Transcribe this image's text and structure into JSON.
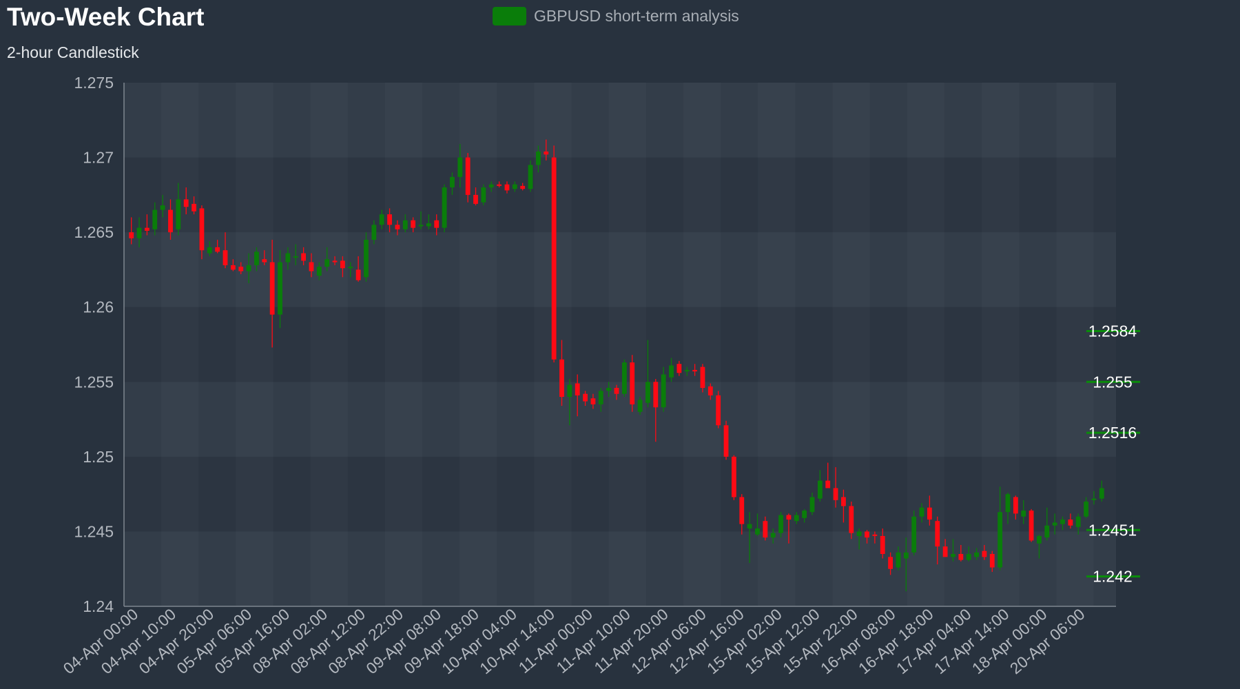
{
  "chart_data": {
    "type": "candlestick",
    "title": "Two-Week Chart",
    "subtitle": "2-hour Candlestick",
    "legend": {
      "label": "GBPUSD short-term analysis",
      "position": "top-center"
    },
    "colors": {
      "background": "#28323e",
      "plot_band_light": "#3a4350",
      "plot_band_dark": "#2c3541",
      "up": "#0a7d0a",
      "down": "#ff0a14",
      "axis": "#7f8790",
      "text": "#b3b8bf",
      "level_line": "#0a8c0a"
    },
    "ylim": [
      1.24,
      1.275
    ],
    "yticks": [
      "1.275",
      "1.27",
      "1.265",
      "1.26",
      "1.255",
      "1.25",
      "1.245",
      "1.24"
    ],
    "xticks": [
      "04-Apr 00:00",
      "04-Apr 10:00",
      "04-Apr 20:00",
      "05-Apr 06:00",
      "05-Apr 16:00",
      "08-Apr 02:00",
      "08-Apr 12:00",
      "08-Apr 22:00",
      "09-Apr 08:00",
      "09-Apr 18:00",
      "10-Apr 04:00",
      "10-Apr 14:00",
      "11-Apr 00:00",
      "11-Apr 10:00",
      "11-Apr 20:00",
      "12-Apr 06:00",
      "12-Apr 16:00",
      "15-Apr 02:00",
      "15-Apr 12:00",
      "15-Apr 22:00",
      "16-Apr 08:00",
      "16-Apr 18:00",
      "17-Apr 04:00",
      "17-Apr 14:00",
      "18-Apr 00:00",
      "20-Apr 06:00"
    ],
    "levels": [
      {
        "value": 1.2584,
        "label": "1.2584"
      },
      {
        "value": 1.255,
        "label": "1.255"
      },
      {
        "value": 1.2516,
        "label": "1.2516"
      },
      {
        "value": 1.2451,
        "label": "1.2451"
      },
      {
        "value": 1.242,
        "label": "1.242"
      }
    ],
    "candles": [
      {
        "o": 1.265,
        "h": 1.266,
        "l": 1.2642,
        "c": 1.2646
      },
      {
        "o": 1.2646,
        "h": 1.266,
        "l": 1.264,
        "c": 1.2653
      },
      {
        "o": 1.2653,
        "h": 1.2662,
        "l": 1.2648,
        "c": 1.2651
      },
      {
        "o": 1.2652,
        "h": 1.267,
        "l": 1.2648,
        "c": 1.2665
      },
      {
        "o": 1.2665,
        "h": 1.2675,
        "l": 1.266,
        "c": 1.2668
      },
      {
        "o": 1.2665,
        "h": 1.2672,
        "l": 1.2645,
        "c": 1.265
      },
      {
        "o": 1.2652,
        "h": 1.2683,
        "l": 1.2648,
        "c": 1.2672
      },
      {
        "o": 1.2672,
        "h": 1.268,
        "l": 1.2662,
        "c": 1.2667
      },
      {
        "o": 1.2669,
        "h": 1.2674,
        "l": 1.2662,
        "c": 1.2664
      },
      {
        "o": 1.2666,
        "h": 1.2668,
        "l": 1.2632,
        "c": 1.2638
      },
      {
        "o": 1.2636,
        "h": 1.2644,
        "l": 1.2634,
        "c": 1.264
      },
      {
        "o": 1.264,
        "h": 1.2645,
        "l": 1.2636,
        "c": 1.2637
      },
      {
        "o": 1.2638,
        "h": 1.265,
        "l": 1.2626,
        "c": 1.2628
      },
      {
        "o": 1.2628,
        "h": 1.2632,
        "l": 1.2624,
        "c": 1.2625
      },
      {
        "o": 1.2627,
        "h": 1.263,
        "l": 1.2622,
        "c": 1.2624
      },
      {
        "o": 1.2624,
        "h": 1.2636,
        "l": 1.2616,
        "c": 1.2628
      },
      {
        "o": 1.2628,
        "h": 1.264,
        "l": 1.2624,
        "c": 1.2637
      },
      {
        "o": 1.2632,
        "h": 1.2638,
        "l": 1.2628,
        "c": 1.263
      },
      {
        "o": 1.263,
        "h": 1.2645,
        "l": 1.2573,
        "c": 1.2595
      },
      {
        "o": 1.2595,
        "h": 1.2638,
        "l": 1.2586,
        "c": 1.263
      },
      {
        "o": 1.263,
        "h": 1.264,
        "l": 1.2625,
        "c": 1.2636
      },
      {
        "o": 1.2633,
        "h": 1.2642,
        "l": 1.2628,
        "c": 1.2634
      },
      {
        "o": 1.2636,
        "h": 1.264,
        "l": 1.2628,
        "c": 1.2631
      },
      {
        "o": 1.263,
        "h": 1.2636,
        "l": 1.262,
        "c": 1.2624
      },
      {
        "o": 1.2621,
        "h": 1.263,
        "l": 1.2618,
        "c": 1.2627
      },
      {
        "o": 1.2627,
        "h": 1.264,
        "l": 1.2624,
        "c": 1.2632
      },
      {
        "o": 1.2631,
        "h": 1.2634,
        "l": 1.2628,
        "c": 1.263
      },
      {
        "o": 1.2631,
        "h": 1.2634,
        "l": 1.262,
        "c": 1.2626
      },
      {
        "o": 1.2626,
        "h": 1.263,
        "l": 1.262,
        "c": 1.2627
      },
      {
        "o": 1.2625,
        "h": 1.2634,
        "l": 1.2617,
        "c": 1.2618
      },
      {
        "o": 1.262,
        "h": 1.265,
        "l": 1.2617,
        "c": 1.2645
      },
      {
        "o": 1.2645,
        "h": 1.2658,
        "l": 1.2642,
        "c": 1.2655
      },
      {
        "o": 1.2655,
        "h": 1.2665,
        "l": 1.2652,
        "c": 1.2662
      },
      {
        "o": 1.2662,
        "h": 1.2666,
        "l": 1.265,
        "c": 1.2655
      },
      {
        "o": 1.2655,
        "h": 1.2658,
        "l": 1.2648,
        "c": 1.2652
      },
      {
        "o": 1.2652,
        "h": 1.2662,
        "l": 1.265,
        "c": 1.2658
      },
      {
        "o": 1.2658,
        "h": 1.266,
        "l": 1.265,
        "c": 1.2653
      },
      {
        "o": 1.2654,
        "h": 1.2664,
        "l": 1.2652,
        "c": 1.2655
      },
      {
        "o": 1.2654,
        "h": 1.2662,
        "l": 1.2652,
        "c": 1.2656
      },
      {
        "o": 1.2658,
        "h": 1.2662,
        "l": 1.2648,
        "c": 1.2653
      },
      {
        "o": 1.2653,
        "h": 1.2682,
        "l": 1.265,
        "c": 1.268
      },
      {
        "o": 1.268,
        "h": 1.269,
        "l": 1.2675,
        "c": 1.2687
      },
      {
        "o": 1.2687,
        "h": 1.2709,
        "l": 1.268,
        "c": 1.27
      },
      {
        "o": 1.27,
        "h": 1.2703,
        "l": 1.267,
        "c": 1.2675
      },
      {
        "o": 1.2675,
        "h": 1.268,
        "l": 1.2668,
        "c": 1.2669
      },
      {
        "o": 1.267,
        "h": 1.2682,
        "l": 1.2668,
        "c": 1.268
      },
      {
        "o": 1.268,
        "h": 1.2684,
        "l": 1.2677,
        "c": 1.2682
      },
      {
        "o": 1.2682,
        "h": 1.2684,
        "l": 1.268,
        "c": 1.2681
      },
      {
        "o": 1.2682,
        "h": 1.2684,
        "l": 1.2676,
        "c": 1.2678
      },
      {
        "o": 1.2679,
        "h": 1.2684,
        "l": 1.2677,
        "c": 1.2682
      },
      {
        "o": 1.2681,
        "h": 1.2683,
        "l": 1.2678,
        "c": 1.2679
      },
      {
        "o": 1.2679,
        "h": 1.2698,
        "l": 1.2677,
        "c": 1.2695
      },
      {
        "o": 1.2695,
        "h": 1.2708,
        "l": 1.269,
        "c": 1.2704
      },
      {
        "o": 1.2704,
        "h": 1.2712,
        "l": 1.2698,
        "c": 1.2702
      },
      {
        "o": 1.27,
        "h": 1.2708,
        "l": 1.2563,
        "c": 1.2565
      },
      {
        "o": 1.2565,
        "h": 1.2578,
        "l": 1.2534,
        "c": 1.254
      },
      {
        "o": 1.254,
        "h": 1.2552,
        "l": 1.2521,
        "c": 1.2548
      },
      {
        "o": 1.2549,
        "h": 1.2555,
        "l": 1.2527,
        "c": 1.2541
      },
      {
        "o": 1.2542,
        "h": 1.2544,
        "l": 1.2534,
        "c": 1.2537
      },
      {
        "o": 1.2539,
        "h": 1.2542,
        "l": 1.2532,
        "c": 1.2535
      },
      {
        "o": 1.2535,
        "h": 1.2546,
        "l": 1.253,
        "c": 1.2544
      },
      {
        "o": 1.2544,
        "h": 1.255,
        "l": 1.254,
        "c": 1.2546
      },
      {
        "o": 1.2546,
        "h": 1.2548,
        "l": 1.2538,
        "c": 1.2542
      },
      {
        "o": 1.2542,
        "h": 1.2565,
        "l": 1.254,
        "c": 1.2563
      },
      {
        "o": 1.2563,
        "h": 1.2568,
        "l": 1.253,
        "c": 1.2535
      },
      {
        "o": 1.253,
        "h": 1.254,
        "l": 1.2528,
        "c": 1.2538
      },
      {
        "o": 1.2536,
        "h": 1.2578,
        "l": 1.2533,
        "c": 1.255
      },
      {
        "o": 1.255,
        "h": 1.2552,
        "l": 1.251,
        "c": 1.2533
      },
      {
        "o": 1.2533,
        "h": 1.256,
        "l": 1.253,
        "c": 1.2555
      },
      {
        "o": 1.2553,
        "h": 1.2566,
        "l": 1.255,
        "c": 1.2561
      },
      {
        "o": 1.2562,
        "h": 1.2564,
        "l": 1.2554,
        "c": 1.2556
      },
      {
        "o": 1.2557,
        "h": 1.256,
        "l": 1.2554,
        "c": 1.2558
      },
      {
        "o": 1.2558,
        "h": 1.2562,
        "l": 1.2554,
        "c": 1.2557
      },
      {
        "o": 1.256,
        "h": 1.2562,
        "l": 1.2543,
        "c": 1.2546
      },
      {
        "o": 1.2547,
        "h": 1.2549,
        "l": 1.2538,
        "c": 1.2541
      },
      {
        "o": 1.2541,
        "h": 1.2544,
        "l": 1.2519,
        "c": 1.2521
      },
      {
        "o": 1.2521,
        "h": 1.2524,
        "l": 1.2498,
        "c": 1.25
      },
      {
        "o": 1.25,
        "h": 1.2501,
        "l": 1.2471,
        "c": 1.2473
      },
      {
        "o": 1.2473,
        "h": 1.2475,
        "l": 1.2448,
        "c": 1.2455
      },
      {
        "o": 1.2452,
        "h": 1.2463,
        "l": 1.2429,
        "c": 1.2455
      },
      {
        "o": 1.2448,
        "h": 1.2462,
        "l": 1.2447,
        "c": 1.2452
      },
      {
        "o": 1.2457,
        "h": 1.246,
        "l": 1.2444,
        "c": 1.2446
      },
      {
        "o": 1.2446,
        "h": 1.2452,
        "l": 1.2442,
        "c": 1.2449
      },
      {
        "o": 1.2449,
        "h": 1.2463,
        "l": 1.2446,
        "c": 1.2461
      },
      {
        "o": 1.2461,
        "h": 1.2462,
        "l": 1.2442,
        "c": 1.2458
      },
      {
        "o": 1.2457,
        "h": 1.2463,
        "l": 1.2455,
        "c": 1.2461
      },
      {
        "o": 1.2459,
        "h": 1.2465,
        "l": 1.2456,
        "c": 1.2464
      },
      {
        "o": 1.2463,
        "h": 1.2476,
        "l": 1.2461,
        "c": 1.2473
      },
      {
        "o": 1.2472,
        "h": 1.2491,
        "l": 1.247,
        "c": 1.2484
      },
      {
        "o": 1.2484,
        "h": 1.2496,
        "l": 1.2481,
        "c": 1.2479
      },
      {
        "o": 1.2479,
        "h": 1.2493,
        "l": 1.2466,
        "c": 1.2471
      },
      {
        "o": 1.2473,
        "h": 1.2478,
        "l": 1.2456,
        "c": 1.2467
      },
      {
        "o": 1.2467,
        "h": 1.247,
        "l": 1.2445,
        "c": 1.2449
      },
      {
        "o": 1.2447,
        "h": 1.2452,
        "l": 1.2438,
        "c": 1.245
      },
      {
        "o": 1.245,
        "h": 1.2451,
        "l": 1.2442,
        "c": 1.2446
      },
      {
        "o": 1.2448,
        "h": 1.245,
        "l": 1.2442,
        "c": 1.2447
      },
      {
        "o": 1.2447,
        "h": 1.2452,
        "l": 1.2432,
        "c": 1.2435
      },
      {
        "o": 1.2433,
        "h": 1.2436,
        "l": 1.2421,
        "c": 1.2425
      },
      {
        "o": 1.2426,
        "h": 1.244,
        "l": 1.2424,
        "c": 1.2436
      },
      {
        "o": 1.2432,
        "h": 1.2446,
        "l": 1.241,
        "c": 1.2436
      },
      {
        "o": 1.2436,
        "h": 1.2464,
        "l": 1.2434,
        "c": 1.246
      },
      {
        "o": 1.246,
        "h": 1.2469,
        "l": 1.2456,
        "c": 1.2466
      },
      {
        "o": 1.2466,
        "h": 1.2474,
        "l": 1.2454,
        "c": 1.2458
      },
      {
        "o": 1.2457,
        "h": 1.246,
        "l": 1.2428,
        "c": 1.244
      },
      {
        "o": 1.244,
        "h": 1.2445,
        "l": 1.2433,
        "c": 1.2433
      },
      {
        "o": 1.2433,
        "h": 1.2445,
        "l": 1.243,
        "c": 1.2435
      },
      {
        "o": 1.2435,
        "h": 1.2441,
        "l": 1.243,
        "c": 1.2431
      },
      {
        "o": 1.2431,
        "h": 1.244,
        "l": 1.243,
        "c": 1.2435
      },
      {
        "o": 1.2433,
        "h": 1.2439,
        "l": 1.2431,
        "c": 1.2436
      },
      {
        "o": 1.2437,
        "h": 1.2441,
        "l": 1.2431,
        "c": 1.2433
      },
      {
        "o": 1.2435,
        "h": 1.2437,
        "l": 1.2423,
        "c": 1.2426
      },
      {
        "o": 1.2426,
        "h": 1.248,
        "l": 1.2424,
        "c": 1.2463
      },
      {
        "o": 1.2463,
        "h": 1.2476,
        "l": 1.2455,
        "c": 1.2475
      },
      {
        "o": 1.2473,
        "h": 1.2474,
        "l": 1.2458,
        "c": 1.2462
      },
      {
        "o": 1.246,
        "h": 1.2471,
        "l": 1.2455,
        "c": 1.2464
      },
      {
        "o": 1.2464,
        "h": 1.2465,
        "l": 1.2443,
        "c": 1.2444
      },
      {
        "o": 1.2442,
        "h": 1.2448,
        "l": 1.2432,
        "c": 1.2447
      },
      {
        "o": 1.2446,
        "h": 1.2466,
        "l": 1.2444,
        "c": 1.2454
      },
      {
        "o": 1.2454,
        "h": 1.2462,
        "l": 1.2448,
        "c": 1.2456
      },
      {
        "o": 1.2455,
        "h": 1.246,
        "l": 1.2451,
        "c": 1.2458
      },
      {
        "o": 1.2458,
        "h": 1.2462,
        "l": 1.2452,
        "c": 1.2454
      },
      {
        "o": 1.2453,
        "h": 1.2462,
        "l": 1.2448,
        "c": 1.246
      },
      {
        "o": 1.246,
        "h": 1.2473,
        "l": 1.2459,
        "c": 1.247
      },
      {
        "o": 1.2471,
        "h": 1.2477,
        "l": 1.2468,
        "c": 1.2472
      },
      {
        "o": 1.2472,
        "h": 1.2484,
        "l": 1.247,
        "c": 1.2479
      }
    ]
  }
}
